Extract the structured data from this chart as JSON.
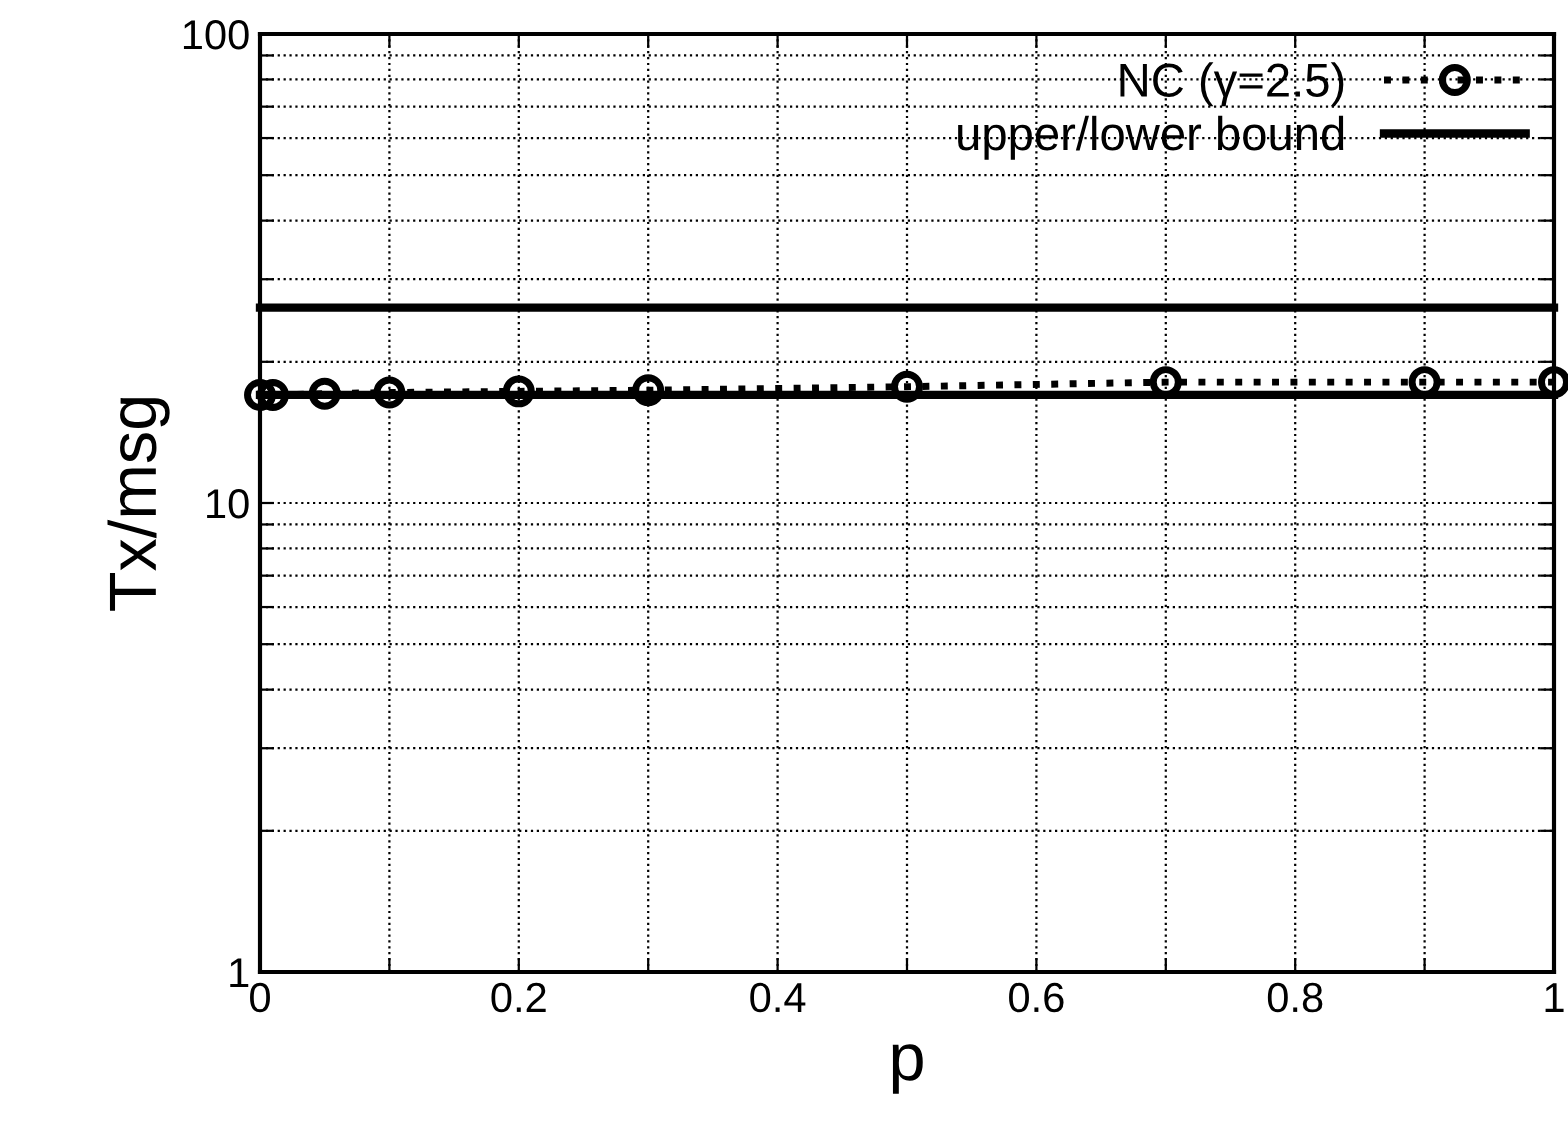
{
  "chart_data": {
    "type": "line",
    "xlabel": "p",
    "ylabel": "Tx/msg",
    "log": "y",
    "xlim": [
      0,
      1
    ],
    "ylim": [
      1,
      100
    ],
    "xticks": [
      0,
      {
        "value": 0.1,
        "label": null
      },
      0.2,
      {
        "value": 0.3,
        "label": null
      },
      0.4,
      {
        "value": 0.5,
        "label": null
      },
      0.6,
      {
        "value": 0.7,
        "label": null
      },
      0.8,
      {
        "value": 0.9,
        "label": null
      },
      1
    ],
    "yticks": [
      1,
      {
        "value": 2,
        "label": null
      },
      {
        "value": 3,
        "label": null
      },
      {
        "value": 4,
        "label": null
      },
      {
        "value": 5,
        "label": null
      },
      {
        "value": 6,
        "label": null
      },
      {
        "value": 7,
        "label": null
      },
      {
        "value": 8,
        "label": null
      },
      {
        "value": 9,
        "label": null
      },
      10,
      {
        "value": 20,
        "label": null
      },
      {
        "value": 30,
        "label": null
      },
      {
        "value": 40,
        "label": null
      },
      {
        "value": 50,
        "label": null
      },
      {
        "value": 60,
        "label": null
      },
      {
        "value": 70,
        "label": null
      },
      {
        "value": 80,
        "label": null
      },
      {
        "value": 90,
        "label": null
      },
      100
    ],
    "grid": true,
    "legend": "top right",
    "series": [
      {
        "name": "NC (γ=2.5)",
        "color": "#000000",
        "marker": "circle",
        "line_style": "dotted",
        "x": [
          0,
          0.01,
          0.05,
          0.1,
          0.2,
          0.3,
          0.5,
          0.7,
          0.9,
          1
        ],
        "values": [
          17.0,
          17.0,
          17.1,
          17.2,
          17.3,
          17.4,
          17.7,
          18.1,
          18.1,
          18.1
        ]
      },
      {
        "name": "upper/lower bound",
        "color": "#000000",
        "marker": "none",
        "line_style": "solid",
        "x": [
          0,
          1
        ],
        "values": [
          26.1,
          26.1
        ]
      },
      {
        "color": "#000000",
        "marker": "none",
        "line_style": "solid",
        "x": [
          0,
          1
        ],
        "values": [
          17.0,
          17.0
        ]
      }
    ]
  }
}
